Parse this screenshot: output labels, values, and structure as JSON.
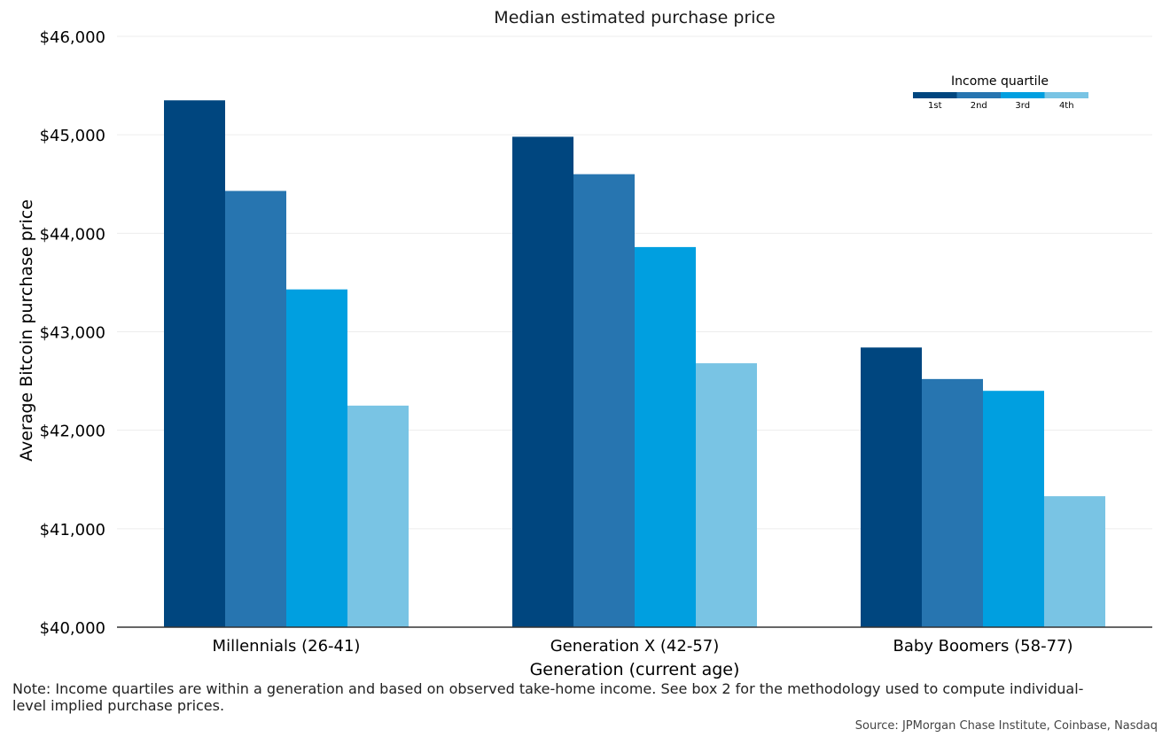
{
  "title": "Median estimated purchase price",
  "note": "Note: Income quartiles are within a generation and based on observed take-home income. See box 2 for the methodology used to compute individual-level implied purchase prices.",
  "source": "Source: JPMorgan Chase Institute, Coinbase, Nasdaq",
  "legend": {
    "title": "Income quartile",
    "position": "top-right"
  },
  "colors": {
    "1st": "#00467f",
    "2nd": "#2775b0",
    "3rd": "#009fe0",
    "4th": "#79c4e4"
  },
  "chart_data": {
    "type": "bar",
    "title": "Median estimated purchase price",
    "xlabel": "Generation (current age)",
    "ylabel": "Average Bitcoin purchase price",
    "categories": [
      "Millennials (26-41)",
      "Generation X (42-57)",
      "Baby Boomers (58-77)"
    ],
    "series": [
      {
        "name": "1st",
        "color": "#00467f",
        "values": [
          45350,
          44980,
          42840
        ]
      },
      {
        "name": "2nd",
        "color": "#2775b0",
        "values": [
          44430,
          44600,
          42520
        ]
      },
      {
        "name": "3rd",
        "color": "#009fe0",
        "values": [
          43430,
          43860,
          42400
        ]
      },
      {
        "name": "4th",
        "color": "#79c4e4",
        "values": [
          42250,
          42680,
          41330
        ]
      }
    ],
    "ylim": [
      40000,
      46000
    ],
    "yticks": [
      40000,
      41000,
      42000,
      43000,
      44000,
      45000,
      46000
    ],
    "ytick_labels": [
      "$40,000",
      "$41,000",
      "$42,000",
      "$43,000",
      "$44,000",
      "$45,000",
      "$46,000"
    ],
    "grid": true,
    "legend_placement": "top-right"
  }
}
